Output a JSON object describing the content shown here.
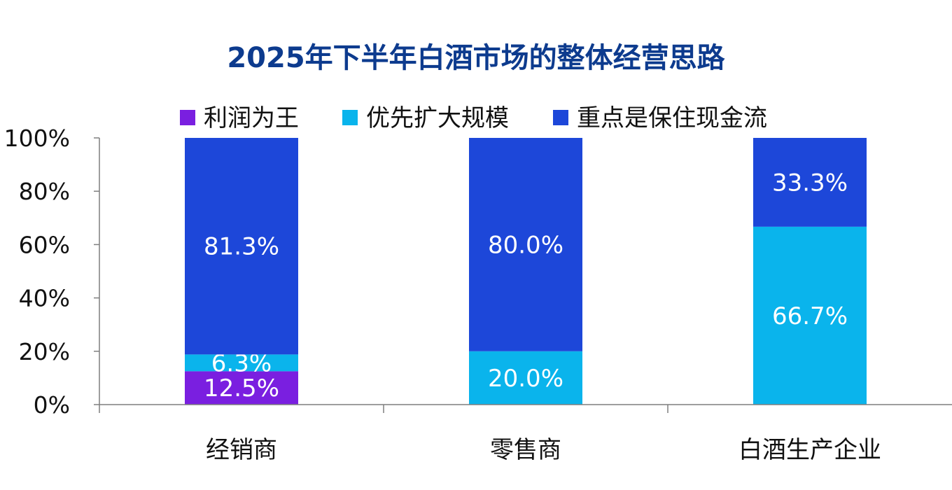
{
  "chart_data": {
    "type": "bar",
    "stacked": true,
    "title": "2025年下半年白酒市场的整体经营思路",
    "categories": [
      "经销商",
      "零售商",
      "白酒生产企业"
    ],
    "series": [
      {
        "name": "利润为王",
        "color": "#7a1fe0",
        "values": [
          12.5,
          0,
          0
        ]
      },
      {
        "name": "优先扩大规模",
        "color": "#0ab4ec",
        "values": [
          6.3,
          20.0,
          66.7
        ]
      },
      {
        "name": "重点是保住现金流",
        "color": "#1d47d9",
        "values": [
          81.3,
          80.0,
          33.3
        ]
      }
    ],
    "data_labels": [
      [
        "12.5%",
        "",
        ""
      ],
      [
        "6.3%",
        "20.0%",
        "66.7%"
      ],
      [
        "81.3%",
        "80.0%",
        "33.3%"
      ]
    ],
    "yaxis": {
      "min": 0,
      "max": 100,
      "ticks": [
        0,
        20,
        40,
        60,
        80,
        100
      ],
      "tick_labels": [
        "0%",
        "20%",
        "40%",
        "60%",
        "80%",
        "100%"
      ]
    },
    "grid": false,
    "legend_position": "top",
    "title_color": "#0d3b8e"
  }
}
